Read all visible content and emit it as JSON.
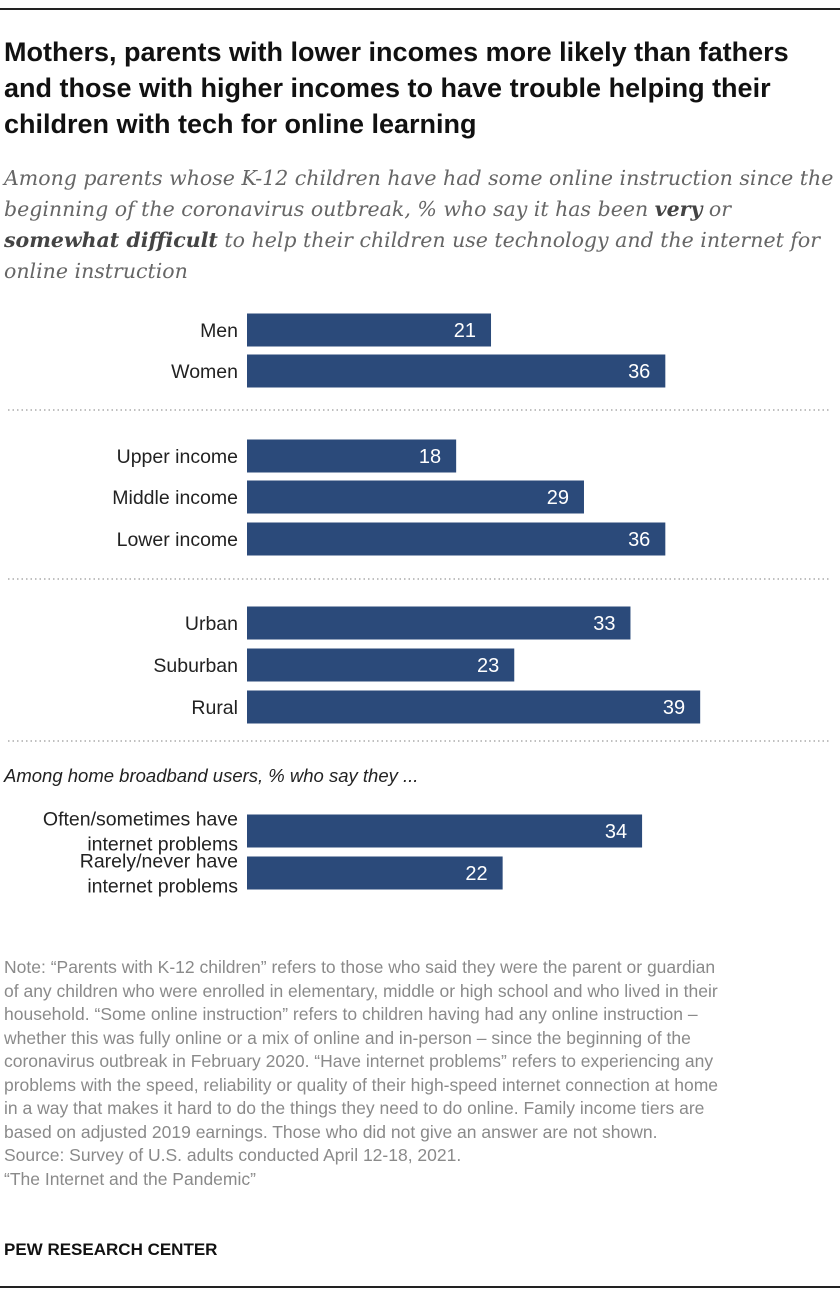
{
  "header": {
    "title": "Mothers, parents with lower incomes more likely than fathers and those with higher incomes to have trouble helping their children with tech for online learning",
    "subtitle_pre": "Among parents whose K-12 children have had some online instruction since the beginning of the coronavirus outbreak, % who say it has been ",
    "subtitle_very": "very",
    "subtitle_or": " or ",
    "subtitle_somewhat": "somewhat difficult",
    "subtitle_post": " to help their children use technology and the internet for online instruction"
  },
  "chart_data": {
    "type": "bar",
    "orientation": "horizontal",
    "bar_color": "#2b4a7a",
    "label_color": "#ffffff",
    "xlim": [
      0,
      50
    ],
    "grid": false,
    "groups": [
      {
        "categories": [
          "Men",
          "Women"
        ],
        "values": [
          21,
          36
        ]
      },
      {
        "categories": [
          "Upper income",
          "Middle income",
          "Lower income"
        ],
        "values": [
          18,
          29,
          36
        ]
      },
      {
        "categories": [
          "Urban",
          "Suburban",
          "Rural"
        ],
        "values": [
          33,
          23,
          39
        ]
      },
      {
        "heading": "Among home broadband users, % who say they ...",
        "categories": [
          "Often/sometimes have internet problems",
          "Rarely/never have internet problems"
        ],
        "category_lines": [
          [
            "Often/sometimes have",
            "internet problems"
          ],
          [
            "Rarely/never have",
            "internet problems"
          ]
        ],
        "values": [
          34,
          22
        ]
      }
    ]
  },
  "notes": {
    "note_lines": [
      "Note: “Parents with K-12 children” refers to those who said they were the parent or guardian",
      "of any children who were enrolled in elementary, middle or high school and who lived in their",
      "household. “Some online instruction” refers to children having had any online instruction –",
      "whether this was fully online or a mix of online and in-person – since the beginning of the",
      "coronavirus outbreak in February 2020. “Have internet problems” refers to experiencing any",
      "problems with the speed, reliability or quality of their high-speed internet connection at home",
      "in a way that makes it hard to do the things they need to do online. Family income tiers are",
      "based on adjusted 2019 earnings. Those who did not give an answer are not shown."
    ],
    "source": "Source: Survey of U.S. adults conducted April 12-18, 2021.",
    "report": "“The Internet and the Pandemic”"
  },
  "branding": {
    "name": "PEW RESEARCH CENTER"
  }
}
